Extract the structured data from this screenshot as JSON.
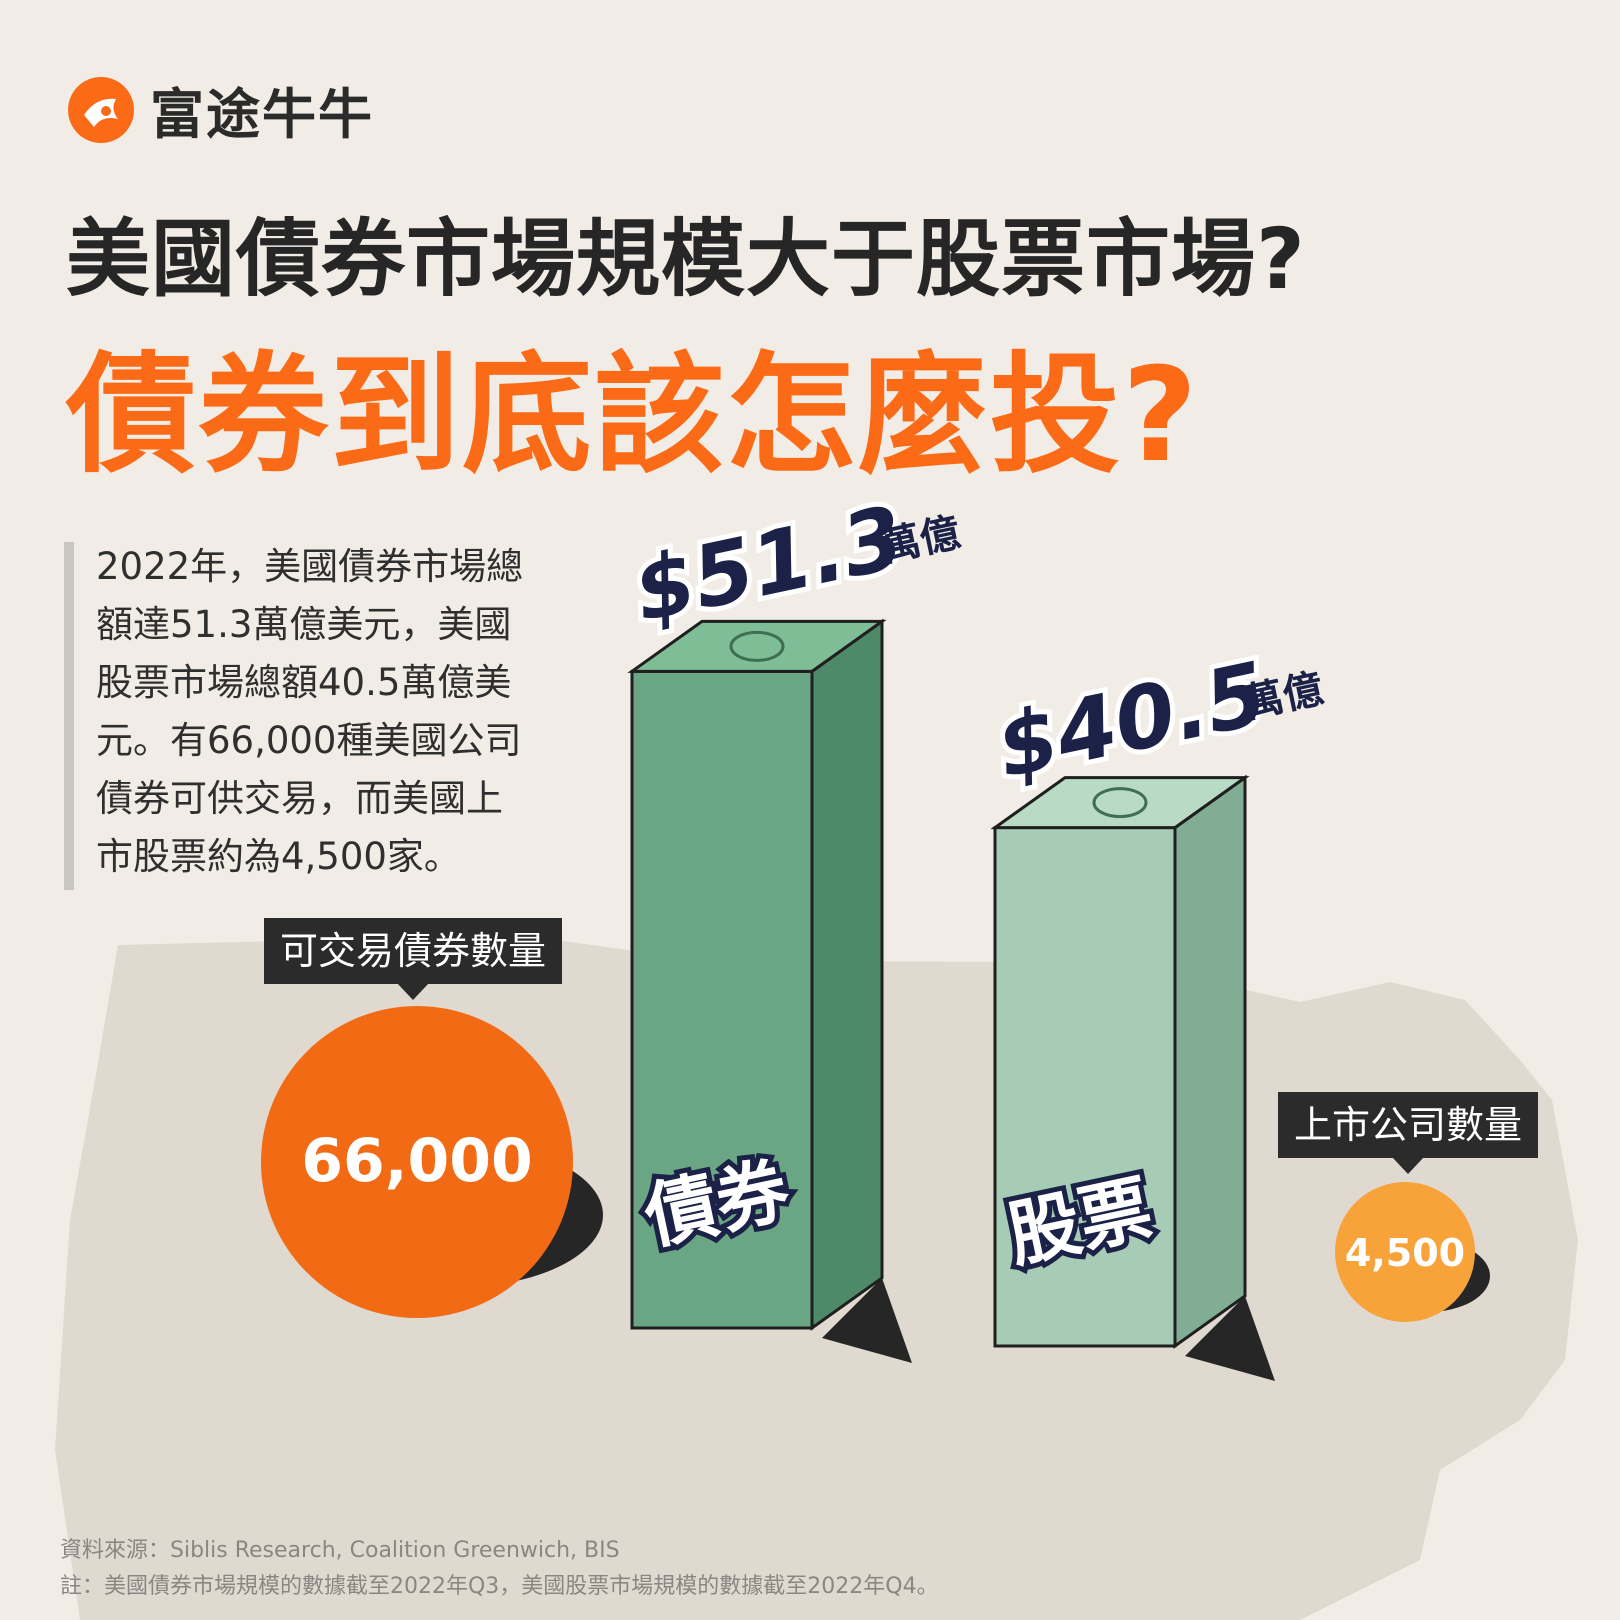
{
  "brand": {
    "name": "富途牛牛"
  },
  "title": {
    "line1": "美國債券市場規模大于股票市場?",
    "line2": "債券到底該怎麼投?"
  },
  "description": [
    "2022年，美國債券市場總",
    "額達51.3萬億美元，美國",
    "股票市場總額40.5萬億美",
    "元。有66,000種美國公司",
    "債券可供交易，而美國上",
    "市股票約為4,500家。"
  ],
  "bubbles": {
    "bonds_tag": "可交易債券數量",
    "bonds_value": "66,000",
    "stocks_tag": "上市公司數量",
    "stocks_value": "4,500"
  },
  "chart_data": {
    "type": "bar",
    "categories": [
      "債券",
      "股票"
    ],
    "values": [
      51.3,
      40.5
    ],
    "value_labels": [
      "$51.3",
      "$40.5"
    ],
    "unit": "萬億",
    "colors": {
      "bonds": "#6aa684",
      "stocks": "#a7ccb6",
      "accent": "#fb6a16",
      "label": "#1b2147"
    }
  },
  "counts": {
    "bonds": 66000,
    "stocks": 4500
  },
  "footer": {
    "source": "資料來源：Siblis Research, Coalition Greenwich, BIS",
    "note": "註：美國債券市場規模的數據截至2022年Q3，美國股票市場規模的數據截至2022年Q4。"
  }
}
